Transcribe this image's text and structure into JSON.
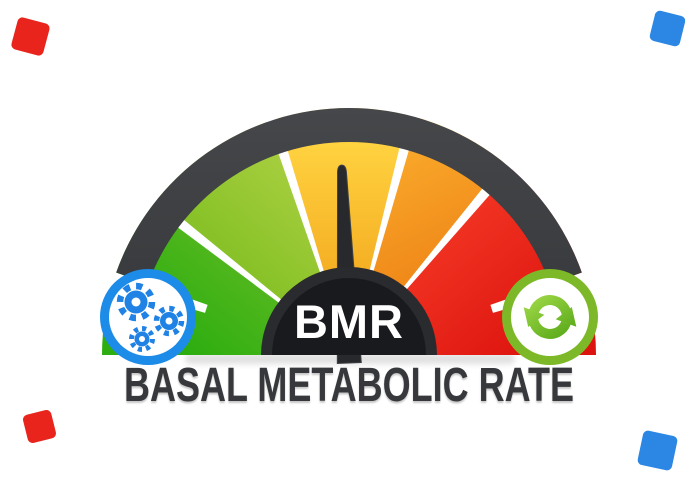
{
  "background": "#ffffff",
  "title": {
    "text": "BASAL METABOLIC RATE",
    "color": "#36383b"
  },
  "gauge": {
    "type": "gauge",
    "label": "BMR",
    "label_color": "#ffffff",
    "dome_outer_color": "#2a2b2e",
    "dome_inner_color": "#191a1d",
    "needle_color": "#27292c",
    "needle_deg": 92.2,
    "rim": {
      "color_top": "#45474a",
      "color_bottom": "#343639",
      "start_deg": 19.5,
      "end_deg": 160.5
    },
    "segments": [
      {
        "name": "green",
        "start_deg": 143.3,
        "end_deg": 180.0,
        "color_from": "#7fc42e",
        "color_to": "#2dad10"
      },
      {
        "name": "yellow-green",
        "start_deg": 109.3,
        "end_deg": 140.7,
        "color_from": "#b3d348",
        "color_to": "#88c228"
      },
      {
        "name": "amber",
        "start_deg": 76.3,
        "end_deg": 106.7,
        "color_from": "#ffd341",
        "color_to": "#f2a51b"
      },
      {
        "name": "orange",
        "start_deg": 51.3,
        "end_deg": 73.7,
        "color_from": "#f9a92b",
        "color_to": "#ec7c12"
      },
      {
        "name": "red",
        "start_deg": 0.0,
        "end_deg": 48.7,
        "color_from": "#f63b27",
        "color_to": "#dc130e"
      }
    ],
    "end_separators_deg": [
      [
        16.3,
        19.5
      ],
      [
        160.5,
        163.7
      ]
    ],
    "separator_color": "#ffffff"
  },
  "badges": {
    "left": {
      "icon": "gears-icon",
      "ring_color": "#1d8be8",
      "inner_color": "#ffffff",
      "icon_color": "#1f82e4"
    },
    "right": {
      "icon": "refresh-icon",
      "ring_color": "#7db828",
      "inner_color": "#ffffff",
      "icon_color_from": "#9dd746",
      "icon_color_to": "#58a818"
    }
  },
  "decorations": {
    "squares": [
      {
        "corner": "top-left",
        "color": "#e8241d"
      },
      {
        "corner": "top-right",
        "color": "#2c87e4"
      },
      {
        "corner": "bottom-left",
        "color": "#e8241d"
      },
      {
        "corner": "bottom-right",
        "color": "#2c87e4"
      }
    ]
  }
}
